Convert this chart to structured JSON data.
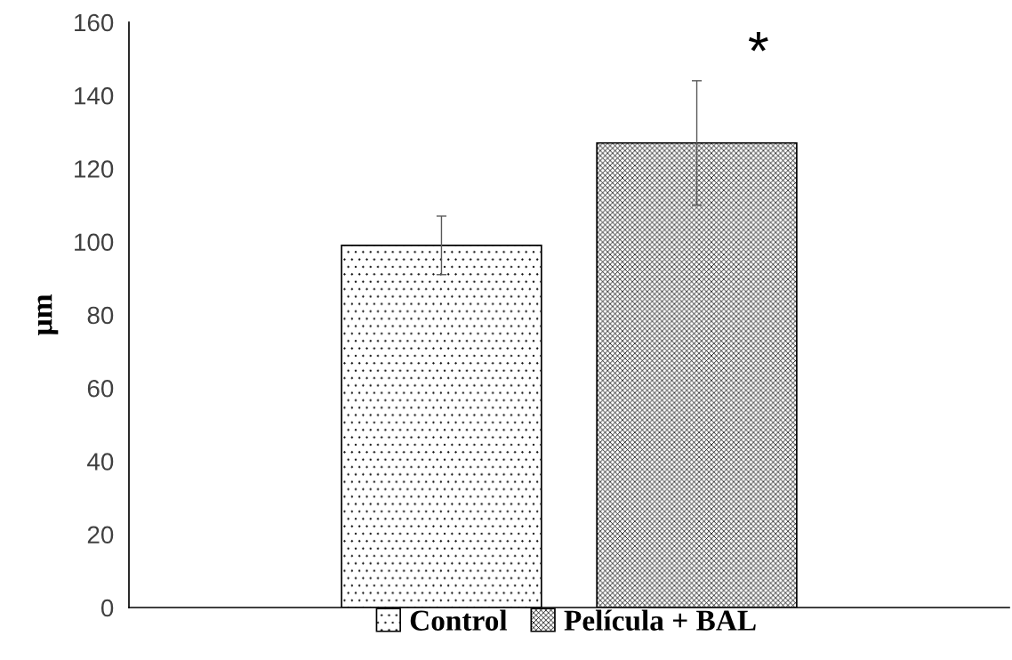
{
  "chart_data": {
    "type": "bar",
    "ylabel": "µm",
    "categories": [
      null
    ],
    "series": [
      {
        "name": "Control",
        "color": "#000000",
        "values": [
          99
        ],
        "errors": [
          8
        ]
      },
      {
        "name": "Película + BAL",
        "color": "#000000",
        "values": [
          127
        ],
        "errors": [
          17
        ]
      }
    ],
    "ylim": [
      0,
      160
    ],
    "yticks": [
      0,
      20,
      40,
      60,
      80,
      100,
      120,
      140,
      160
    ],
    "annotations": [
      "*"
    ],
    "grid": false,
    "legend": "bottom"
  }
}
